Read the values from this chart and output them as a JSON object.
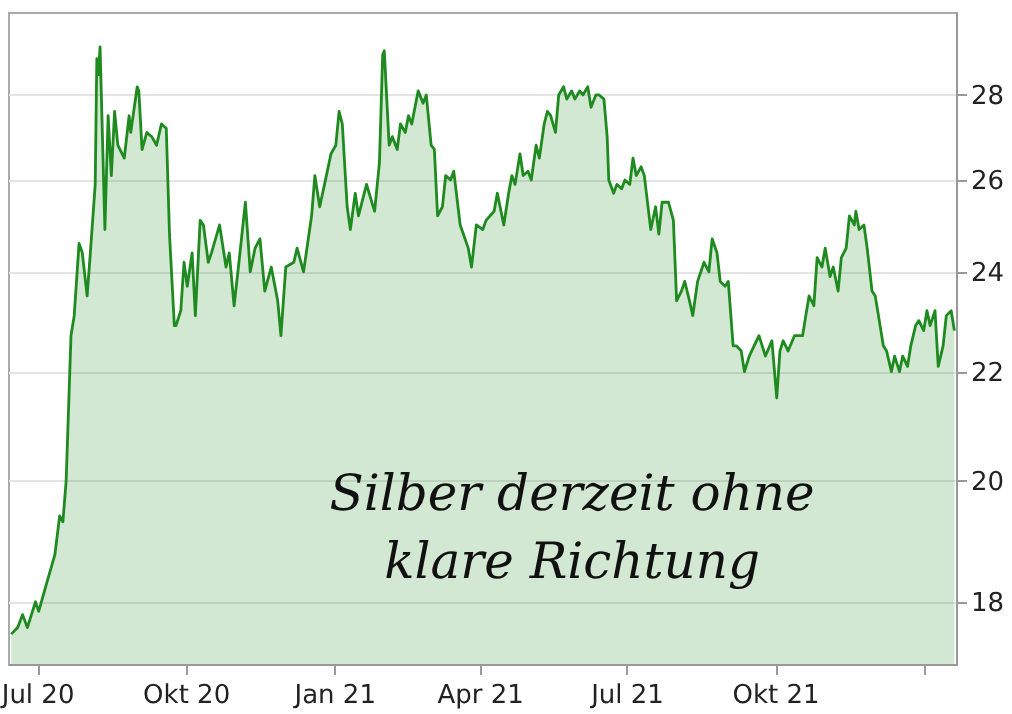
{
  "chart_data": {
    "type": "area",
    "x": [
      "2020-06-15",
      "2020-06-19",
      "2020-06-22",
      "2020-06-25",
      "2020-06-30",
      "2020-07-02",
      "2020-07-07",
      "2020-07-12",
      "2020-07-15",
      "2020-07-17",
      "2020-07-19",
      "2020-07-22",
      "2020-07-24",
      "2020-07-27",
      "2020-07-29",
      "2020-08-01",
      "2020-08-03",
      "2020-08-06",
      "2020-08-07",
      "2020-08-08",
      "2020-08-09",
      "2020-08-12",
      "2020-08-14",
      "2020-08-16",
      "2020-08-18",
      "2020-08-20",
      "2020-08-24",
      "2020-08-27",
      "2020-08-28",
      "2020-09-01",
      "2020-09-02",
      "2020-09-04",
      "2020-09-07",
      "2020-09-10",
      "2020-09-13",
      "2020-09-16",
      "2020-09-19",
      "2020-09-21",
      "2020-09-24",
      "2020-09-25",
      "2020-09-28",
      "2020-09-30",
      "2020-10-02",
      "2020-10-05",
      "2020-10-07",
      "2020-10-10",
      "2020-10-12",
      "2020-10-15",
      "2020-10-17",
      "2020-10-22",
      "2020-10-26",
      "2020-10-28",
      "2020-10-31",
      "2020-11-03",
      "2020-11-07",
      "2020-11-10",
      "2020-11-13",
      "2020-11-16",
      "2020-11-19",
      "2020-11-23",
      "2020-11-27",
      "2020-11-29",
      "2020-12-02",
      "2020-12-07",
      "2020-12-09",
      "2020-12-13",
      "2020-12-18",
      "2020-12-20",
      "2020-12-23",
      "2020-12-26",
      "2020-12-30",
      "2021-01-02",
      "2021-01-04",
      "2021-01-06",
      "2021-01-09",
      "2021-01-11",
      "2021-01-14",
      "2021-01-16",
      "2021-01-21",
      "2021-01-26",
      "2021-01-29",
      "2021-01-31",
      "2021-02-01",
      "2021-02-04",
      "2021-02-06",
      "2021-02-09",
      "2021-02-11",
      "2021-02-14",
      "2021-02-16",
      "2021-02-18",
      "2021-02-20",
      "2021-02-22",
      "2021-02-25",
      "2021-02-27",
      "2021-03-02",
      "2021-03-04",
      "2021-03-06",
      "2021-03-09",
      "2021-03-11",
      "2021-03-14",
      "2021-03-16",
      "2021-03-20",
      "2021-03-25",
      "2021-03-27",
      "2021-03-30",
      "2021-04-03",
      "2021-04-05",
      "2021-04-10",
      "2021-04-12",
      "2021-04-16",
      "2021-04-19",
      "2021-04-21",
      "2021-04-23",
      "2021-04-26",
      "2021-04-28",
      "2021-05-01",
      "2021-05-03",
      "2021-05-06",
      "2021-05-08",
      "2021-05-11",
      "2021-05-13",
      "2021-05-15",
      "2021-05-18",
      "2021-05-20",
      "2021-05-23",
      "2021-05-25",
      "2021-05-28",
      "2021-05-30",
      "2021-06-02",
      "2021-06-04",
      "2021-06-07",
      "2021-06-09",
      "2021-06-12",
      "2021-06-14",
      "2021-06-17",
      "2021-06-19",
      "2021-06-20",
      "2021-06-23",
      "2021-06-25",
      "2021-06-28",
      "2021-06-30",
      "2021-07-03",
      "2021-07-05",
      "2021-07-07",
      "2021-07-10",
      "2021-07-12",
      "2021-07-16",
      "2021-07-19",
      "2021-07-21",
      "2021-07-23",
      "2021-07-27",
      "2021-07-30",
      "2021-08-01",
      "2021-08-04",
      "2021-08-06",
      "2021-08-09",
      "2021-08-11",
      "2021-08-14",
      "2021-08-16",
      "2021-08-18",
      "2021-08-21",
      "2021-08-23",
      "2021-08-26",
      "2021-08-28",
      "2021-08-31",
      "2021-09-02",
      "2021-09-05",
      "2021-09-07",
      "2021-09-10",
      "2021-09-12",
      "2021-09-15",
      "2021-09-21",
      "2021-09-25",
      "2021-09-29",
      "2021-10-02",
      "2021-10-04",
      "2021-10-06",
      "2021-10-09",
      "2021-10-13",
      "2021-10-18",
      "2021-10-20",
      "2021-10-22",
      "2021-10-25",
      "2021-10-27",
      "2021-10-30",
      "2021-11-01",
      "2021-11-04",
      "2021-11-06",
      "2021-11-09",
      "2021-11-11",
      "2021-11-14",
      "2021-11-16",
      "2021-11-19",
      "2021-11-20",
      "2021-11-22",
      "2021-11-25",
      "2021-11-27",
      "2021-11-30",
      "2021-12-02",
      "2021-12-05",
      "2021-12-07",
      "2021-12-09",
      "2021-12-12",
      "2021-12-14",
      "2021-12-17",
      "2021-12-19",
      "2021-12-22",
      "2021-12-24",
      "2021-12-27",
      "2021-12-29",
      "2022-01-01",
      "2022-01-03",
      "2022-01-05",
      "2022-01-08",
      "2022-01-10",
      "2022-01-13",
      "2022-01-15",
      "2022-01-18",
      "2022-01-20"
    ],
    "series": [
      {
        "color": "#1f8a1f",
        "values": [
          17.5,
          17.6,
          17.8,
          17.6,
          18.0,
          17.85,
          18.3,
          18.75,
          19.4,
          19.3,
          20.0,
          22.7,
          23.1,
          24.6,
          24.4,
          23.5,
          24.4,
          25.9,
          28.9,
          28.5,
          29.2,
          24.9,
          27.5,
          26.1,
          27.6,
          26.8,
          26.5,
          27.5,
          27.1,
          28.2,
          28.1,
          26.7,
          27.1,
          27.0,
          26.8,
          27.3,
          27.2,
          24.8,
          22.9,
          22.9,
          23.2,
          24.2,
          23.7,
          24.4,
          23.1,
          25.1,
          25.0,
          24.2,
          24.4,
          25.0,
          24.1,
          24.4,
          23.3,
          24.2,
          25.5,
          24.0,
          24.5,
          24.7,
          23.6,
          24.1,
          23.4,
          22.7,
          24.1,
          24.2,
          24.5,
          24.0,
          25.2,
          26.1,
          25.4,
          25.9,
          26.6,
          26.8,
          27.6,
          27.3,
          25.4,
          24.9,
          25.7,
          25.2,
          25.9,
          25.3,
          26.4,
          29.0,
          29.1,
          26.8,
          27.0,
          26.7,
          27.3,
          27.1,
          27.5,
          27.3,
          27.7,
          28.1,
          27.8,
          28.0,
          26.8,
          26.7,
          25.2,
          25.4,
          26.1,
          26.0,
          26.2,
          25.0,
          24.5,
          24.1,
          25.0,
          24.9,
          25.1,
          25.3,
          25.7,
          25.0,
          25.7,
          26.1,
          25.9,
          26.6,
          26.1,
          26.2,
          26.0,
          26.8,
          26.5,
          27.3,
          27.6,
          27.5,
          27.1,
          28.0,
          28.2,
          27.9,
          28.1,
          27.9,
          28.1,
          28.0,
          28.2,
          27.7,
          28.0,
          28.0,
          27.9,
          27.0,
          26.0,
          25.7,
          25.9,
          25.8,
          26.0,
          25.9,
          26.5,
          26.1,
          26.3,
          26.1,
          24.9,
          25.4,
          24.8,
          25.5,
          25.5,
          25.1,
          23.4,
          23.6,
          23.8,
          23.4,
          23.1,
          23.8,
          24.0,
          24.2,
          24.0,
          24.7,
          24.4,
          23.8,
          23.7,
          23.8,
          22.5,
          22.5,
          22.4,
          22.0,
          22.3,
          22.7,
          22.3,
          22.6,
          21.5,
          22.4,
          22.6,
          22.4,
          22.7,
          22.7,
          23.1,
          23.5,
          23.3,
          24.3,
          24.1,
          24.5,
          23.9,
          24.1,
          23.6,
          24.3,
          24.5,
          25.2,
          25.0,
          25.3,
          24.9,
          25.0,
          24.5,
          23.6,
          23.5,
          22.9,
          22.5,
          22.4,
          22.0,
          22.3,
          22.0,
          22.3,
          22.1,
          22.5,
          22.9,
          23.0,
          22.8,
          23.2,
          22.9,
          23.2,
          22.1,
          22.5,
          23.1,
          23.2,
          22.8
        ]
      }
    ],
    "xlim": [
      "2020-06-13",
      "2022-01-21"
    ],
    "xticks": [
      {
        "value": "2020-07-01",
        "label": "Jul 20"
      },
      {
        "value": "2020-10-01",
        "label": "Okt 20"
      },
      {
        "value": "2021-01-01",
        "label": "Jan 21"
      },
      {
        "value": "2021-04-01",
        "label": "Apr 21"
      },
      {
        "value": "2021-07-01",
        "label": "Jul 21"
      },
      {
        "value": "2021-10-01",
        "label": "Okt 21"
      },
      {
        "value": "2022-01-01",
        "label": null
      }
    ],
    "ylim": [
      17.05,
      30.1
    ],
    "yticks": [
      18,
      20,
      22,
      24,
      26,
      28
    ],
    "log": true,
    "grid": "y",
    "annotations": [
      "Silber derzeit ohne klare Richtung"
    ]
  }
}
